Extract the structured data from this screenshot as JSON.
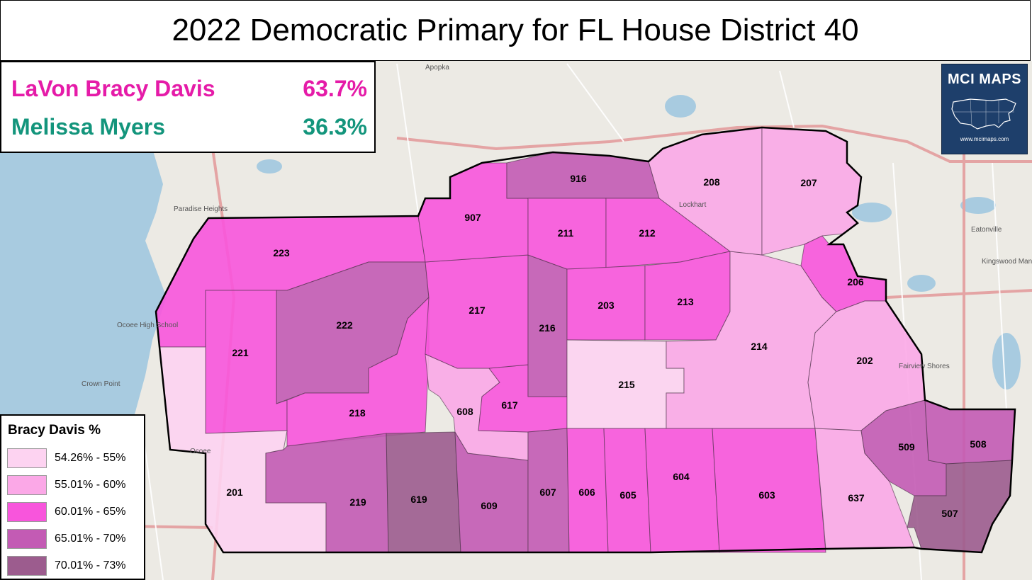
{
  "title": "2022 Democratic Primary for FL House District 40",
  "results": {
    "candidates": [
      {
        "name": "LaVon Bracy Davis",
        "pct": "63.7%",
        "color": "#e51ba8"
      },
      {
        "name": "Melissa Myers",
        "pct": "36.3%",
        "color": "#13957c"
      }
    ]
  },
  "logo": {
    "title": "MCI MAPS",
    "url": "www.mcimaps.com"
  },
  "legend": {
    "title": "Bracy Davis %",
    "items": [
      {
        "label": "54.26% - 55%",
        "color": "#fdd3f1"
      },
      {
        "label": "55.01% - 60%",
        "color": "#fba8e7"
      },
      {
        "label": "60.01% - 65%",
        "color": "#f855dc"
      },
      {
        "label": "65.01% - 70%",
        "color": "#c35bb4"
      },
      {
        "label": "70.01% - 73%",
        "color": "#9c5c8e"
      }
    ]
  },
  "basemap_labels": [
    "Paradise Heights",
    "Lockhart",
    "Eatonville",
    "Kingswood Manor",
    "Fairview Shores",
    "Ocoee",
    "Apopka",
    "Crown Point",
    "Ocoee High School"
  ],
  "precincts": [
    {
      "id": "223",
      "color": "#f855dc"
    },
    {
      "id": "222",
      "color": "#c35bb4"
    },
    {
      "id": "221",
      "color": "#f855dc"
    },
    {
      "id": "218",
      "color": "#f855dc"
    },
    {
      "id": "201",
      "color": "#fdd3f1"
    },
    {
      "id": "219",
      "color": "#c35bb4"
    },
    {
      "id": "619",
      "color": "#9c5c8e"
    },
    {
      "id": "609",
      "color": "#c35bb4"
    },
    {
      "id": "608",
      "color": "#fba8e7"
    },
    {
      "id": "617",
      "color": "#f855dc"
    },
    {
      "id": "217",
      "color": "#f855dc"
    },
    {
      "id": "216",
      "color": "#c35bb4"
    },
    {
      "id": "907",
      "color": "#f855dc"
    },
    {
      "id": "916",
      "color": "#c35bb4"
    },
    {
      "id": "211",
      "color": "#f855dc"
    },
    {
      "id": "212",
      "color": "#f855dc"
    },
    {
      "id": "203",
      "color": "#f855dc"
    },
    {
      "id": "213",
      "color": "#f855dc"
    },
    {
      "id": "215",
      "color": "#fdd3f1"
    },
    {
      "id": "214",
      "color": "#fba8e7"
    },
    {
      "id": "208",
      "color": "#fba8e7"
    },
    {
      "id": "207",
      "color": "#fba8e7"
    },
    {
      "id": "206",
      "color": "#f855dc"
    },
    {
      "id": "202",
      "color": "#fba8e7"
    },
    {
      "id": "607",
      "color": "#c35bb4"
    },
    {
      "id": "606",
      "color": "#f855dc"
    },
    {
      "id": "605",
      "color": "#f855dc"
    },
    {
      "id": "604",
      "color": "#f855dc"
    },
    {
      "id": "603",
      "color": "#f855dc"
    },
    {
      "id": "637",
      "color": "#fba8e7"
    },
    {
      "id": "509",
      "color": "#c35bb4"
    },
    {
      "id": "508",
      "color": "#c35bb4"
    },
    {
      "id": "507",
      "color": "#9c5c8e"
    }
  ]
}
